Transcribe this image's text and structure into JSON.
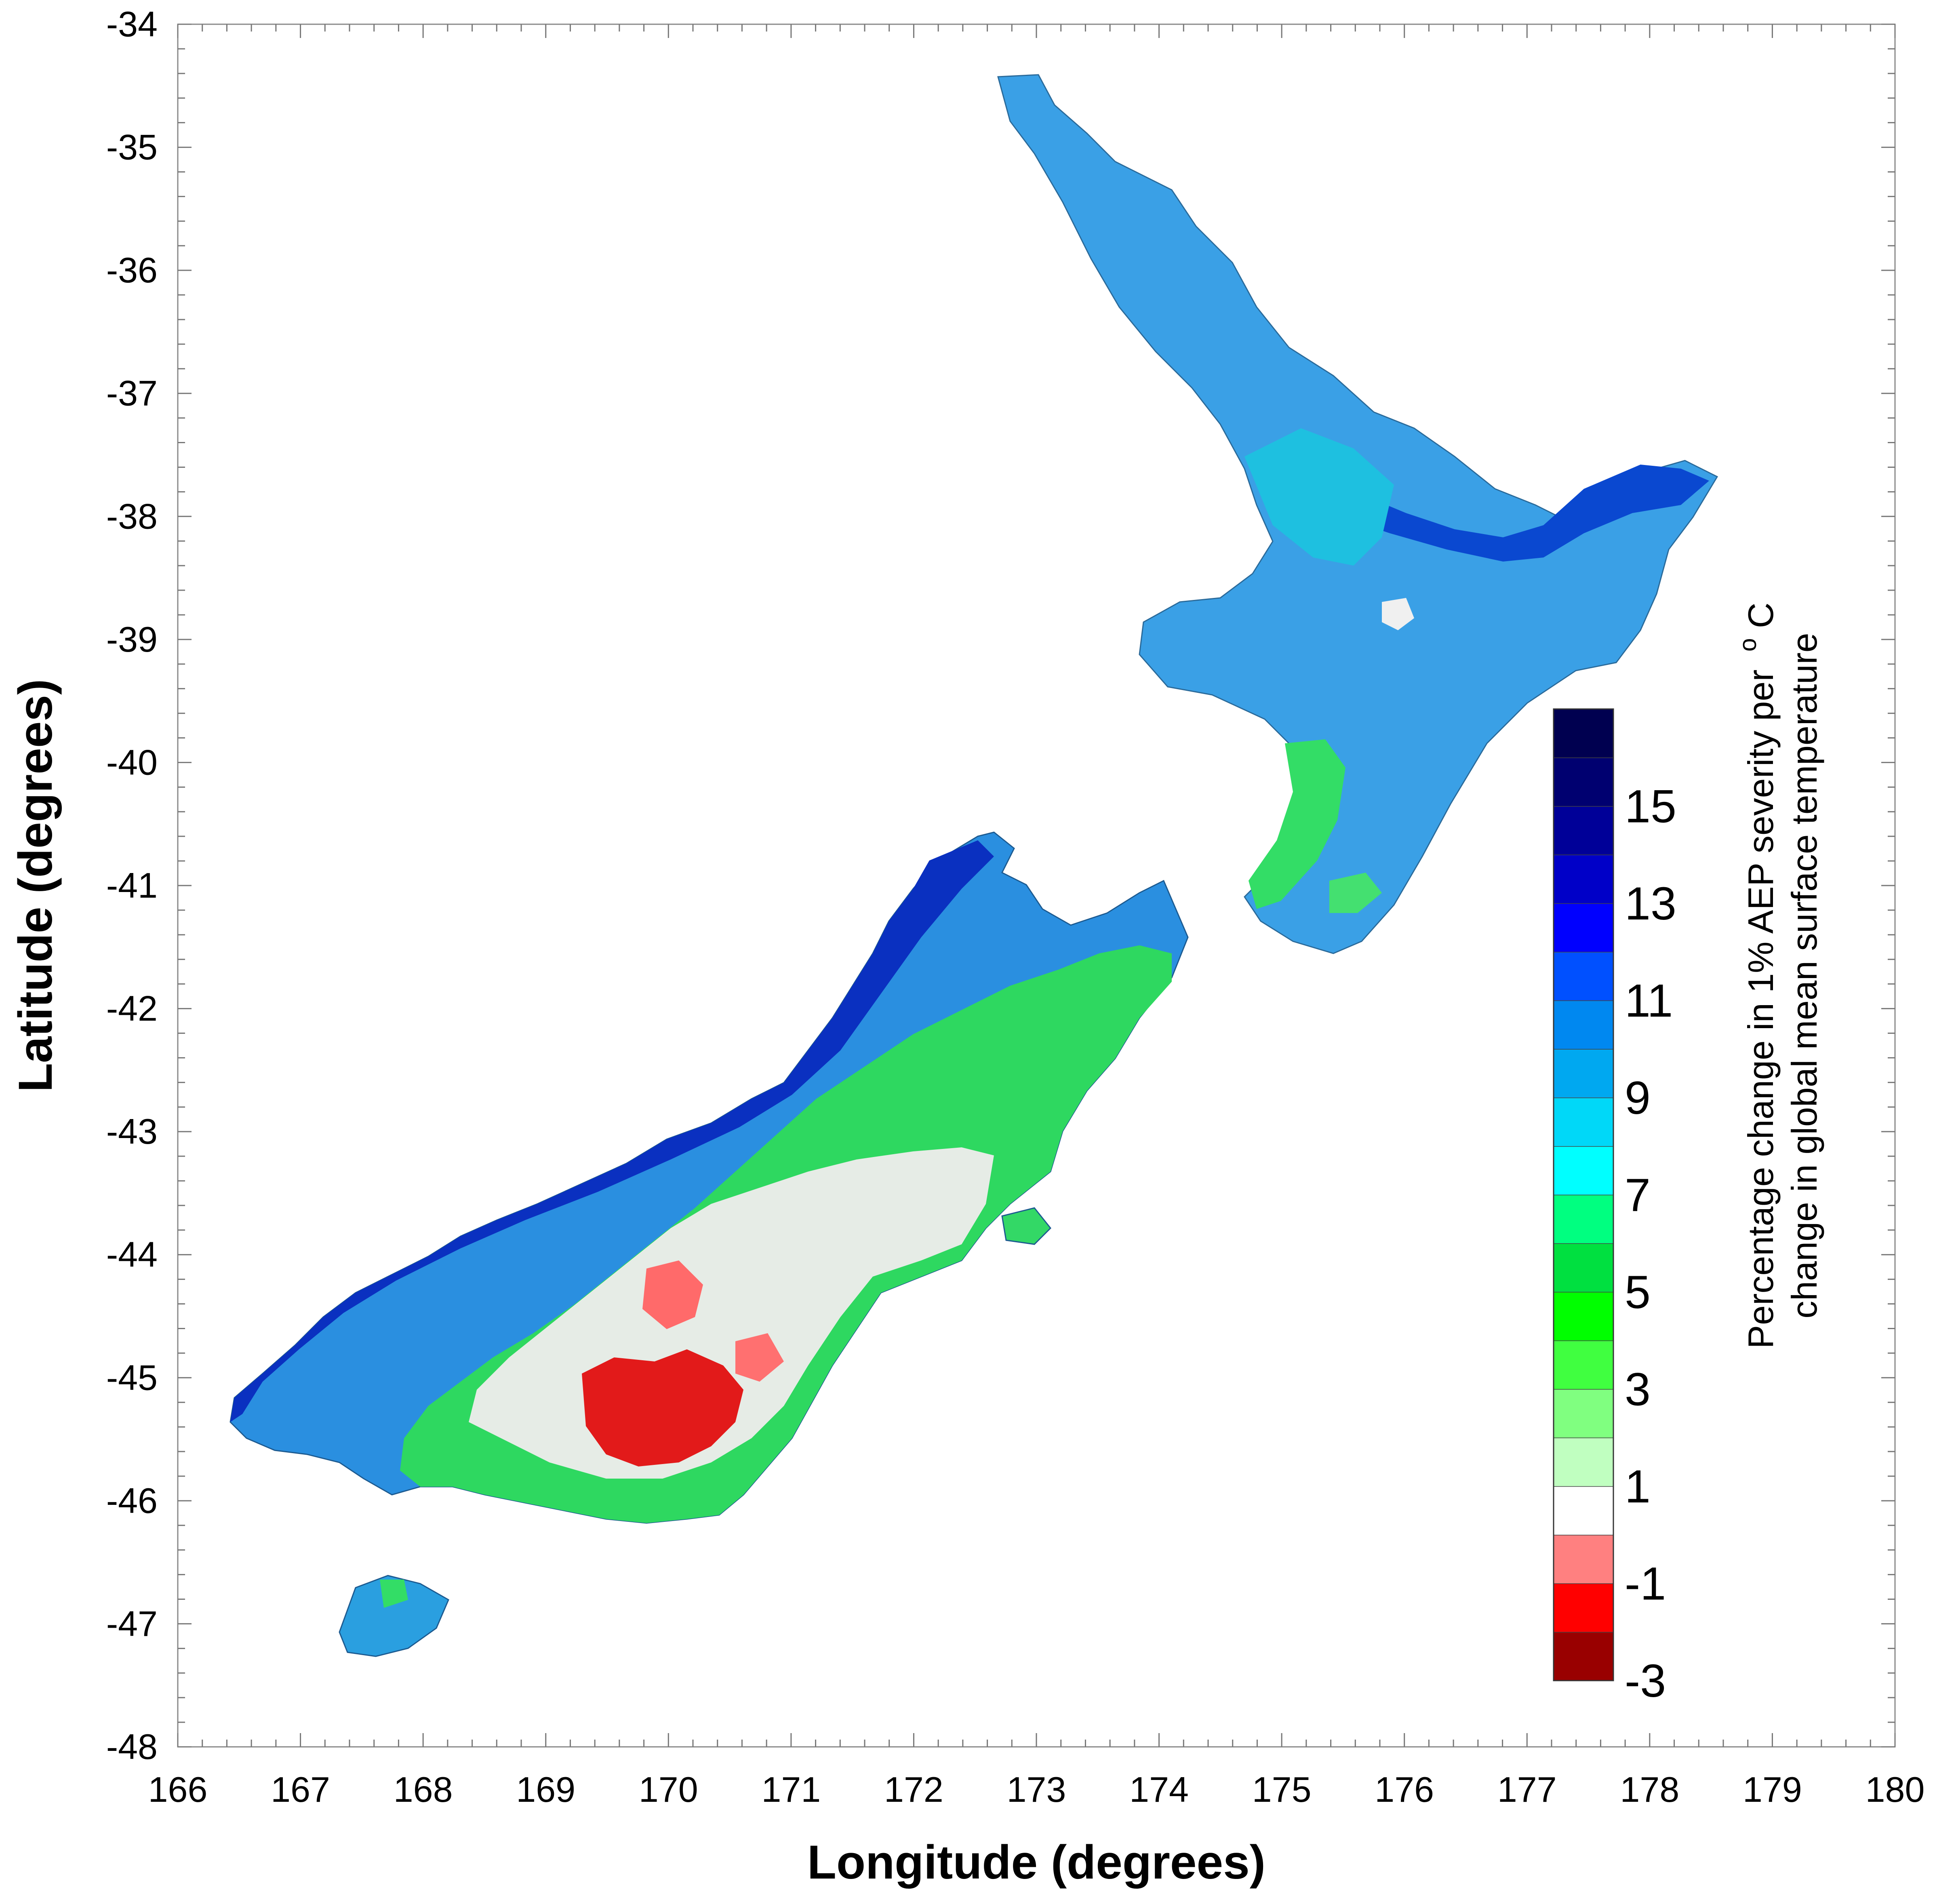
{
  "chart_data": {
    "type": "heatmap",
    "subject": "New Zealand",
    "xlabel": "Longitude (degrees)",
    "ylabel": "Latitude (degrees)",
    "xlim": [
      166,
      180
    ],
    "ylim": [
      -48,
      -34
    ],
    "x_ticks": [
      "166",
      "167",
      "168",
      "169",
      "170",
      "171",
      "172",
      "173",
      "174",
      "175",
      "176",
      "177",
      "178",
      "179",
      "180"
    ],
    "y_ticks": [
      "-34",
      "-35",
      "-36",
      "-37",
      "-38",
      "-39",
      "-40",
      "-41",
      "-42",
      "-43",
      "-44",
      "-45",
      "-46",
      "-47",
      "-48"
    ],
    "colorbar": {
      "title_line1": "Percentage change in 1% AEP severity per",
      "title_sup": "o",
      "title_unit": "C",
      "title_line2": "change in global mean surface temperature",
      "range": [
        -3,
        17
      ],
      "colors": [
        "#990000",
        "#ff0000",
        "#ff8080",
        "#ffffff",
        "#c0ffc0",
        "#80ff80",
        "#40ff40",
        "#00ff00",
        "#00e040",
        "#00ff80",
        "#00ffff",
        "#00d8f8",
        "#00a8f0",
        "#0088f0",
        "#0050ff",
        "#0000ff",
        "#0000c8",
        "#000098",
        "#000070",
        "#000050"
      ],
      "labels": [
        "-3",
        "-1",
        "1",
        "3",
        "5",
        "7",
        "9",
        "11",
        "13",
        "15"
      ]
    }
  }
}
